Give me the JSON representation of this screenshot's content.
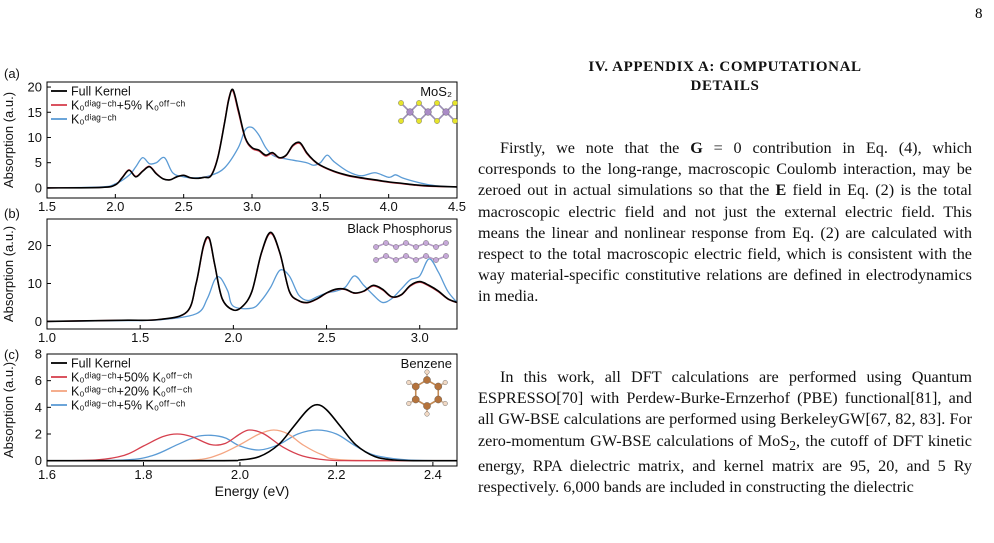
{
  "page": {
    "number": "8"
  },
  "section": {
    "heading_line1": "IV.  APPENDIX A: COMPUTATIONAL",
    "heading_line2": "DETAILS"
  },
  "paragraphs": [
    {
      "parts": [
        {
          "t": "Firstly, we note that the "
        },
        {
          "t": "G",
          "b": true
        },
        {
          "t": " = 0 contribution in Eq. (4), which corresponds to the long-range, macroscopic Coulomb interaction, may be zeroed out in actual simulations so that the "
        },
        {
          "t": "E",
          "b": true
        },
        {
          "t": " field in Eq. (2) is the total macroscopic electric field and not just the external electric field. This means the linear and nonlinear response from Eq. (2) are calculated with respect to the total macroscopic electric field, which is consistent with the way material-specific constitutive relations are defined in electrodynamics in media."
        }
      ]
    },
    {
      "parts": [
        {
          "t": "In this work, all DFT calculations are performed using Quantum ESPRESSO[70] with Perdew-Burke-Ernzerhof (PBE) functional[81], and all GW-BSE calculations are performed using BerkeleyGW[67, 82, 83]. For zero-momentum GW-BSE calculations of MoS"
        },
        {
          "t": "2",
          "sub": true
        },
        {
          "t": ", the cutoff of DFT kinetic energy, RPA dielectric matrix, and kernel matrix are 95, 20, and 5 Ry respectively. 6,000 bands are included in constructing the dielectric"
        }
      ]
    }
  ],
  "chart_data": [
    {
      "panel": "(a)",
      "type": "line",
      "title": "MoS₂",
      "ylabel": "Absorption (a.u.)",
      "xlabel": "",
      "xlim": [
        1.5,
        4.5
      ],
      "ylim": [
        -2,
        21
      ],
      "xticks": [
        "1.5",
        "2.0",
        "2.5",
        "3.0",
        "3.5",
        "4.0",
        "4.5"
      ],
      "yticks": [
        "0",
        "5",
        "10",
        "15",
        "20"
      ],
      "legend": [
        "Full Kernel",
        "K₀ᵈⁱᵃᵍ⁻ᶜʰ+5% K₀ᵒᶠᶠ⁻ᶜʰ",
        "K₀ᵈⁱᵃᵍ⁻ᶜʰ"
      ],
      "legend_position": "top-left",
      "series": [
        {
          "name": "Full Kernel",
          "color": "#000000",
          "x": [
            1.5,
            1.9,
            2.0,
            2.05,
            2.1,
            2.15,
            2.2,
            2.25,
            2.3,
            2.35,
            2.4,
            2.45,
            2.5,
            2.55,
            2.6,
            2.65,
            2.7,
            2.75,
            2.8,
            2.83,
            2.86,
            2.9,
            2.95,
            3.0,
            3.05,
            3.1,
            3.15,
            3.2,
            3.25,
            3.3,
            3.35,
            3.4,
            3.45,
            3.5,
            3.6,
            3.7,
            3.8,
            3.9,
            4.0,
            4.1,
            4.2,
            4.3,
            4.5
          ],
          "y": [
            0,
            0.1,
            0.6,
            2.0,
            3.5,
            2.2,
            3.3,
            4.2,
            2.8,
            1.8,
            1.6,
            2.2,
            2.5,
            2.0,
            1.9,
            2.1,
            2.4,
            6.0,
            13.0,
            17.5,
            19.5,
            15.5,
            10.0,
            8.0,
            7.5,
            6.5,
            7.0,
            6.0,
            6.5,
            8.5,
            9.0,
            7.0,
            5.5,
            4.5,
            3.3,
            2.5,
            2.0,
            1.6,
            1.2,
            0.9,
            0.6,
            0.4,
            0.2
          ]
        },
        {
          "name": "K₀ᵈⁱᵃᵍ⁻ᶜʰ+5% K₀ᵒᶠᶠ⁻ᶜʰ",
          "color": "#d6404e",
          "x": [
            1.5,
            1.9,
            2.0,
            2.05,
            2.1,
            2.15,
            2.2,
            2.25,
            2.3,
            2.35,
            2.4,
            2.45,
            2.5,
            2.55,
            2.6,
            2.65,
            2.7,
            2.75,
            2.8,
            2.83,
            2.86,
            2.9,
            2.95,
            3.0,
            3.05,
            3.1,
            3.15,
            3.2,
            3.25,
            3.3,
            3.35,
            3.4,
            3.45,
            3.5,
            3.6,
            3.7,
            3.8,
            3.9,
            4.0,
            4.1,
            4.2,
            4.3,
            4.5
          ],
          "y": [
            0,
            0.1,
            0.6,
            2.1,
            3.6,
            2.3,
            3.4,
            4.3,
            2.9,
            1.8,
            1.6,
            2.2,
            2.5,
            2.0,
            1.9,
            2.1,
            2.5,
            6.2,
            13.2,
            17.8,
            19.2,
            15.0,
            9.8,
            7.8,
            7.3,
            6.3,
            6.8,
            5.9,
            6.4,
            8.3,
            8.8,
            6.8,
            5.4,
            4.4,
            3.2,
            2.4,
            1.9,
            1.5,
            1.1,
            0.8,
            0.5,
            0.3,
            0.2
          ]
        },
        {
          "name": "K₀ᵈⁱᵃᵍ⁻ᶜʰ",
          "color": "#5b9bd5",
          "x": [
            1.5,
            1.9,
            2.0,
            2.1,
            2.15,
            2.2,
            2.25,
            2.3,
            2.36,
            2.42,
            2.5,
            2.6,
            2.7,
            2.8,
            2.9,
            2.95,
            3.0,
            3.05,
            3.1,
            3.15,
            3.2,
            3.3,
            3.4,
            3.45,
            3.5,
            3.55,
            3.6,
            3.7,
            3.8,
            3.9,
            4.0,
            4.05,
            4.1,
            4.2,
            4.3,
            4.4,
            4.5
          ],
          "y": [
            0,
            0.2,
            0.8,
            2.5,
            4.2,
            6.0,
            4.8,
            5.0,
            6.0,
            3.0,
            2.2,
            2.0,
            2.5,
            4.0,
            8.0,
            11.5,
            12.0,
            10.5,
            8.0,
            6.5,
            6.0,
            5.5,
            5.0,
            4.5,
            5.0,
            6.5,
            5.2,
            3.3,
            2.4,
            3.0,
            2.1,
            2.6,
            2.0,
            1.2,
            0.6,
            0.3,
            0.2
          ]
        }
      ]
    },
    {
      "panel": "(b)",
      "type": "line",
      "title": "Black Phosphorus",
      "ylabel": "Absorption (a.u.)",
      "xlabel": "",
      "xlim": [
        1.0,
        3.2
      ],
      "ylim": [
        -2,
        27
      ],
      "xticks": [
        "1.0",
        "1.5",
        "2.0",
        "2.5",
        "3.0"
      ],
      "yticks": [
        "0",
        "10",
        "20"
      ],
      "series": [
        {
          "name": "Full Kernel",
          "color": "#000000",
          "x": [
            1.0,
            1.4,
            1.6,
            1.75,
            1.8,
            1.84,
            1.87,
            1.9,
            1.94,
            2.0,
            2.05,
            2.1,
            2.15,
            2.2,
            2.25,
            2.3,
            2.35,
            2.4,
            2.45,
            2.5,
            2.55,
            2.6,
            2.65,
            2.7,
            2.75,
            2.8,
            2.85,
            2.9,
            2.95,
            3.0,
            3.05,
            3.1,
            3.15,
            3.2
          ],
          "y": [
            0,
            0.3,
            0.5,
            2.5,
            10.0,
            20.0,
            22.0,
            15.0,
            6.0,
            3.0,
            4.0,
            8.0,
            18.0,
            23.5,
            18.0,
            8.0,
            5.5,
            5.0,
            6.0,
            7.5,
            8.5,
            8.5,
            7.5,
            8.0,
            9.5,
            8.5,
            6.5,
            7.0,
            9.5,
            10.5,
            9.5,
            8.0,
            6.0,
            5.0
          ]
        },
        {
          "name": "K₀ᵈⁱᵃᵍ⁻ᶜʰ+5% K₀ᵒᶠᶠ⁻ᶜʰ",
          "color": "#d6404e",
          "x": [
            1.0,
            1.4,
            1.6,
            1.75,
            1.8,
            1.84,
            1.87,
            1.9,
            1.94,
            2.0,
            2.05,
            2.1,
            2.15,
            2.2,
            2.25,
            2.3,
            2.35,
            2.4,
            2.45,
            2.5,
            2.55,
            2.6,
            2.65,
            2.7,
            2.75,
            2.8,
            2.85,
            2.9,
            2.95,
            3.0,
            3.05,
            3.1,
            3.15,
            3.2
          ],
          "y": [
            0,
            0.3,
            0.5,
            2.4,
            9.8,
            19.6,
            21.7,
            14.8,
            5.9,
            3.0,
            4.0,
            7.9,
            17.8,
            23.2,
            17.8,
            7.9,
            5.4,
            4.9,
            5.9,
            7.4,
            8.4,
            8.4,
            7.4,
            7.9,
            9.3,
            8.3,
            6.4,
            6.9,
            9.3,
            10.3,
            9.3,
            7.8,
            5.9,
            4.9
          ]
        },
        {
          "name": "K₀ᵈⁱᵃᵍ⁻ᶜʰ",
          "color": "#5b9bd5",
          "x": [
            1.0,
            1.4,
            1.6,
            1.8,
            1.86,
            1.9,
            1.93,
            1.97,
            2.0,
            2.1,
            2.15,
            2.2,
            2.25,
            2.3,
            2.35,
            2.4,
            2.45,
            2.5,
            2.55,
            2.6,
            2.65,
            2.7,
            2.75,
            2.8,
            2.85,
            2.9,
            2.95,
            3.0,
            3.05,
            3.1,
            3.15,
            3.2
          ],
          "y": [
            0,
            0.2,
            0.4,
            2.0,
            6.0,
            11.0,
            11.5,
            8.0,
            4.0,
            3.5,
            5.5,
            9.0,
            13.5,
            12.0,
            7.0,
            5.5,
            6.5,
            7.5,
            8.0,
            9.0,
            12.0,
            9.5,
            7.0,
            5.0,
            6.0,
            8.5,
            11.0,
            12.0,
            16.5,
            13.0,
            8.0,
            5.0
          ]
        }
      ]
    },
    {
      "panel": "(c)",
      "type": "line",
      "title": "Benzene",
      "ylabel": "Absorption (a.u.)",
      "xlabel": "Energy (eV)",
      "xlim": [
        1.6,
        2.45
      ],
      "ylim": [
        -0.4,
        8
      ],
      "xticks": [
        "1.6",
        "1.8",
        "2.0",
        "2.2",
        "2.4"
      ],
      "yticks": [
        "0",
        "2",
        "4",
        "6",
        "8"
      ],
      "legend": [
        "Full Kernel",
        "K₀ᵈⁱᵃᵍ⁻ᶜʰ+50% K₀ᵒᶠᶠ⁻ᶜʰ",
        "K₀ᵈⁱᵃᵍ⁻ᶜʰ+20% K₀ᵒᶠᶠ⁻ᶜʰ",
        "K₀ᵈⁱᵃᵍ⁻ᶜʰ+5% K₀ᵒᶠᶠ⁻ᶜʰ"
      ],
      "legend_position": "top-left",
      "series": [
        {
          "name": "Full Kernel",
          "color": "#000000",
          "x": [
            1.6,
            1.95,
            2.0,
            2.04,
            2.08,
            2.11,
            2.14,
            2.16,
            2.18,
            2.21,
            2.24,
            2.28,
            2.32,
            2.36,
            2.45
          ],
          "y": [
            0,
            0,
            0.05,
            0.3,
            1.2,
            2.5,
            3.8,
            4.2,
            3.8,
            2.5,
            1.2,
            0.3,
            0.05,
            0,
            0
          ]
        },
        {
          "name": "K₀ᵈⁱᵃᵍ⁻ᶜʰ+50% K₀ᵒᶠᶠ⁻ᶜʰ",
          "color": "#d6404e",
          "x": [
            1.6,
            1.7,
            1.76,
            1.8,
            1.84,
            1.87,
            1.9,
            1.94,
            1.97,
            2.0,
            2.02,
            2.05,
            2.09,
            2.13,
            2.18,
            2.24,
            2.45
          ],
          "y": [
            0,
            0.05,
            0.4,
            1.1,
            1.8,
            2.0,
            1.8,
            1.2,
            1.3,
            2.0,
            2.3,
            2.0,
            1.0,
            0.35,
            0.05,
            0,
            0
          ]
        },
        {
          "name": "K₀ᵈⁱᵃᵍ⁻ᶜʰ+20% K₀ᵒᶠᶠ⁻ᶜʰ",
          "color": "#f4a582",
          "x": [
            1.6,
            1.85,
            1.92,
            1.96,
            2.0,
            2.04,
            2.07,
            2.1,
            2.13,
            2.17,
            2.22,
            2.45
          ],
          "y": [
            0,
            0,
            0.1,
            0.5,
            1.2,
            2.0,
            2.3,
            2.0,
            1.2,
            0.45,
            0.05,
            0
          ]
        },
        {
          "name": "K₀ᵈⁱᵃᵍ⁻ᶜʰ+5% K₀ᵒᶠᶠ⁻ᶜʰ",
          "color": "#5b9bd5",
          "x": [
            1.6,
            1.76,
            1.82,
            1.87,
            1.91,
            1.94,
            1.97,
            2.0,
            2.04,
            2.08,
            2.12,
            2.16,
            2.2,
            2.24,
            2.28,
            2.35,
            2.45
          ],
          "y": [
            0,
            0.05,
            0.4,
            1.2,
            1.8,
            1.9,
            1.7,
            1.1,
            0.8,
            1.2,
            2.0,
            2.3,
            2.0,
            1.1,
            0.4,
            0.05,
            0
          ]
        }
      ]
    }
  ]
}
